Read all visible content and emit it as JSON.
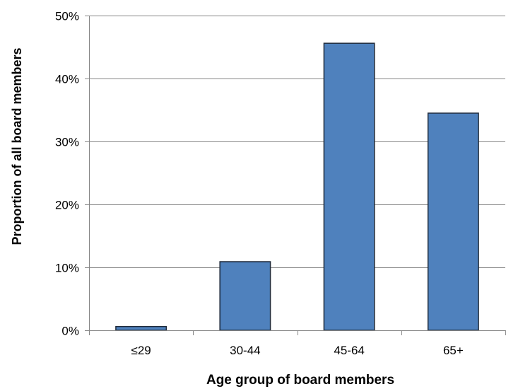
{
  "chart_data": {
    "type": "bar",
    "title": "",
    "xlabel": "Age group of board members",
    "ylabel": "Proportion of all board members",
    "categories": [
      "≤29",
      "30-44",
      "45-64",
      "65+"
    ],
    "values": [
      0.6,
      10.9,
      45.6,
      34.5
    ],
    "ylim": [
      0,
      50
    ],
    "yticks": [
      0,
      10,
      20,
      30,
      40,
      50
    ],
    "ytick_labels": [
      "0%",
      "10%",
      "20%",
      "30%",
      "40%",
      "50%"
    ],
    "grid": true,
    "legend": "none",
    "colors": {
      "bar_fill": "#4F81BD",
      "bar_stroke": "#1F2A3A",
      "grid": "#868686",
      "axis": "#868686"
    }
  }
}
